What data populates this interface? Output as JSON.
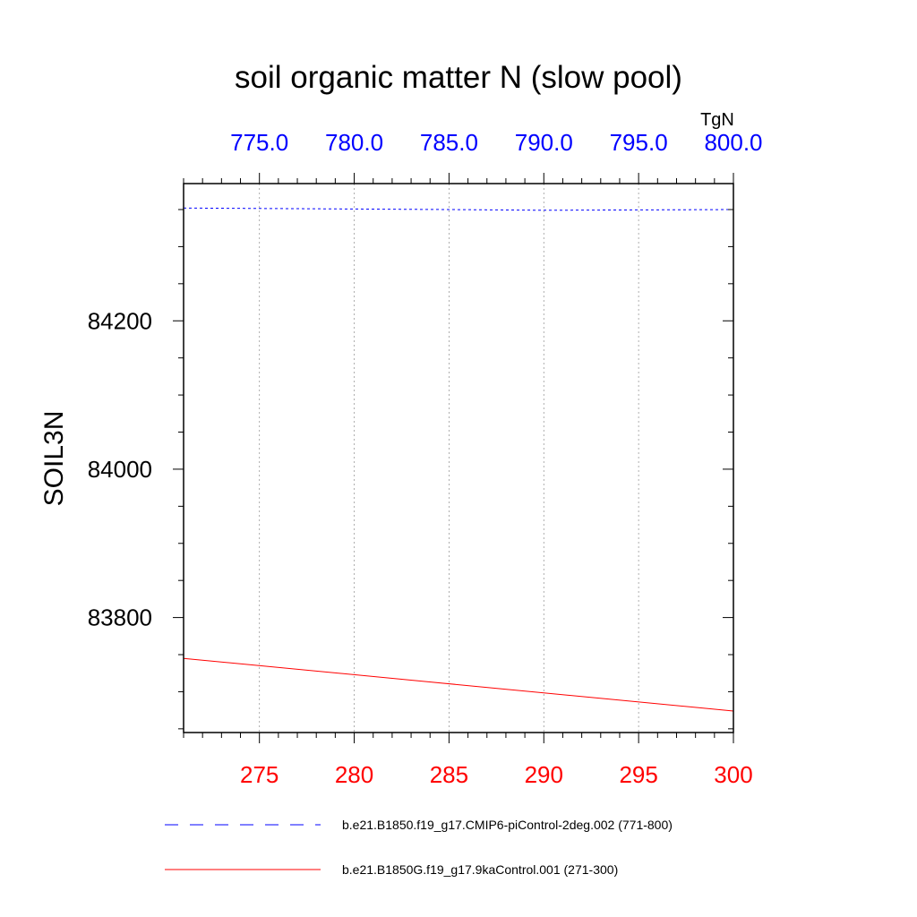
{
  "chart_data": {
    "type": "line",
    "title": "soil organic matter N (slow pool)",
    "ylabel": "SOIL3N",
    "units": "TgN",
    "ylim": [
      83645,
      84385
    ],
    "yticks_major": [
      83800,
      84000,
      84200
    ],
    "ytick_labels": [
      "83800",
      "84000",
      "84200"
    ],
    "bottom_axis": {
      "range": [
        271,
        300
      ],
      "ticks": [
        275,
        280,
        285,
        290,
        295,
        300
      ],
      "tick_labels": [
        "275",
        "280",
        "285",
        "290",
        "295",
        "300"
      ],
      "color": "#ff0000"
    },
    "top_axis": {
      "range": [
        771,
        800
      ],
      "ticks": [
        775,
        780,
        785,
        790,
        795,
        800
      ],
      "tick_labels": [
        "775.0",
        "780.0",
        "785.0",
        "790.0",
        "795.0",
        "800.0"
      ],
      "color": "#0000ff"
    },
    "grid": "vertical dotted",
    "series": [
      {
        "name": "b.e21.B1850.f19_g17.CMIP6-piControl-2deg.002 (771-800)",
        "axis": "top",
        "color": "#0000ff",
        "style": "dashed",
        "x": [
          771,
          785,
          790,
          800
        ],
        "values": [
          84352,
          84350,
          84349,
          84350
        ]
      },
      {
        "name": "b.e21.B1850G.f19_g17.9kaControl.001 (271-300)",
        "axis": "bottom",
        "color": "#ff0000",
        "style": "solid",
        "x": [
          271,
          300
        ],
        "values": [
          83745,
          83674
        ]
      }
    ],
    "legend_position": "bottom"
  }
}
